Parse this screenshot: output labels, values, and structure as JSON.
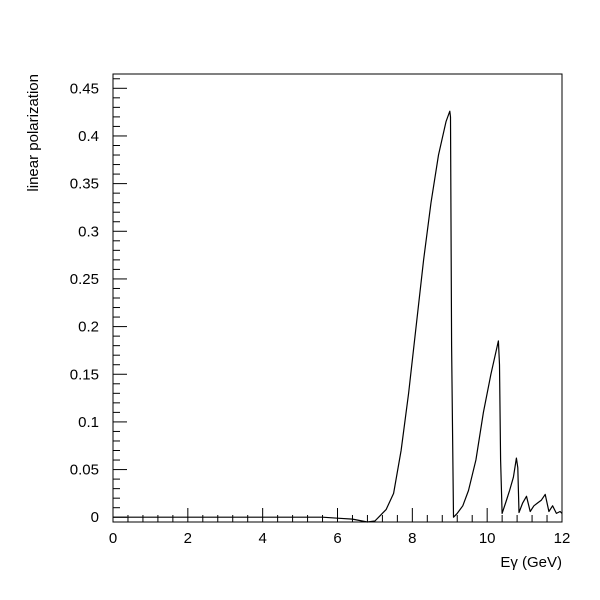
{
  "chart_data": {
    "type": "line",
    "title": "",
    "xlabel": "Eγ (GeV)",
    "ylabel": "linear polarization",
    "xlim": [
      0,
      12
    ],
    "ylim": [
      -0.005,
      0.465
    ],
    "grid": false,
    "x_ticks": [
      {
        "value": 0,
        "label": "0"
      },
      {
        "value": 2,
        "label": "2"
      },
      {
        "value": 4,
        "label": "4"
      },
      {
        "value": 6,
        "label": "6"
      },
      {
        "value": 8,
        "label": "8"
      },
      {
        "value": 10,
        "label": "10"
      },
      {
        "value": 12,
        "label": "12"
      }
    ],
    "x_minor_step": 0.4,
    "y_ticks": [
      {
        "value": 0,
        "label": "0"
      },
      {
        "value": 0.05,
        "label": "0.05"
      },
      {
        "value": 0.1,
        "label": "0.1"
      },
      {
        "value": 0.15,
        "label": "0.15"
      },
      {
        "value": 0.2,
        "label": "0.2"
      },
      {
        "value": 0.25,
        "label": "0.25"
      },
      {
        "value": 0.3,
        "label": "0.3"
      },
      {
        "value": 0.35,
        "label": "0.35"
      },
      {
        "value": 0.4,
        "label": "0.4"
      },
      {
        "value": 0.45,
        "label": "0.45"
      }
    ],
    "y_minor_step": 0.01,
    "series": [
      {
        "color": "#000000",
        "x": [
          0,
          5.6,
          6.0,
          6.4,
          6.8,
          7.0,
          7.15,
          7.3,
          7.5,
          7.7,
          7.9,
          8.1,
          8.3,
          8.5,
          8.7,
          8.9,
          9.0,
          9.02,
          9.05,
          9.1,
          9.2,
          9.35,
          9.5,
          9.7,
          9.9,
          10.1,
          10.3,
          10.33,
          10.36,
          10.4,
          10.5,
          10.6,
          10.7,
          10.78,
          10.82,
          10.85,
          10.95,
          11.05,
          11.15,
          11.25,
          11.35,
          11.45,
          11.55,
          11.65,
          11.75,
          11.85,
          11.95,
          12.0
        ],
        "y": [
          0,
          0,
          -0.001,
          -0.002,
          -0.005,
          -0.004,
          0.002,
          0.008,
          0.025,
          0.07,
          0.13,
          0.2,
          0.27,
          0.33,
          0.38,
          0.415,
          0.426,
          0.42,
          0.18,
          0.0,
          0.004,
          0.012,
          0.028,
          0.06,
          0.11,
          0.15,
          0.185,
          0.16,
          0.06,
          0.004,
          0.016,
          0.028,
          0.042,
          0.062,
          0.052,
          0.005,
          0.015,
          0.022,
          0.006,
          0.012,
          0.015,
          0.018,
          0.024,
          0.006,
          0.012,
          0.004,
          0.006,
          0.004
        ]
      }
    ]
  }
}
